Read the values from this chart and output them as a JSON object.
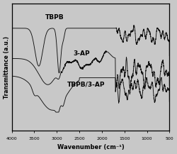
{
  "xlabel": "Wavenumber (cm⁻¹)",
  "ylabel": "Transmittance (a.u.)",
  "xticks": [
    4000,
    3500,
    3000,
    2500,
    2000,
    1500,
    1000,
    500
  ],
  "labels": [
    "TBPB",
    "3-AP",
    "TBPB/3-AP"
  ],
  "background_color": "#c8c8c8",
  "line_color": "#111111",
  "offsets": [
    0.62,
    0.3,
    0.0
  ]
}
